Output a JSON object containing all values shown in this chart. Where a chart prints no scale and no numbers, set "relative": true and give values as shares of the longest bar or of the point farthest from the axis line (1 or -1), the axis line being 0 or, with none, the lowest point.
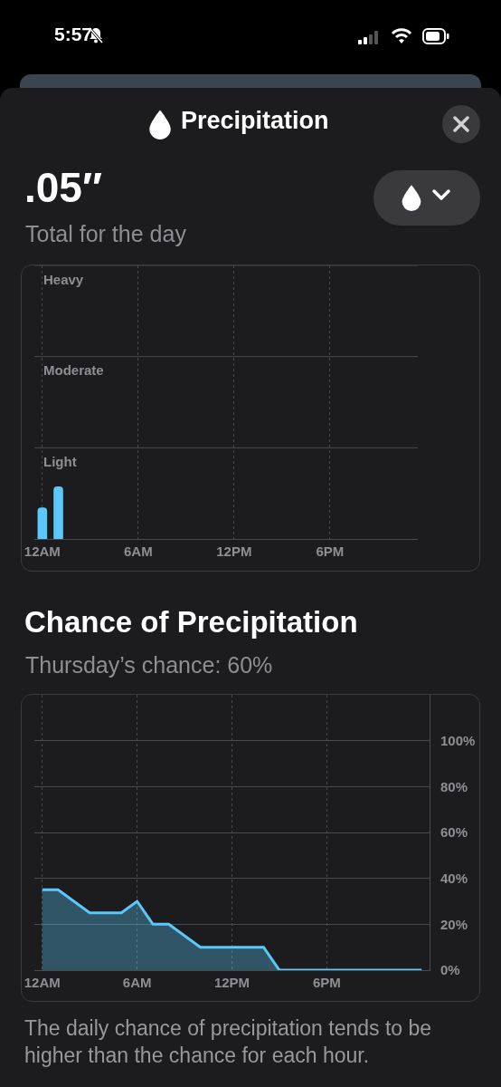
{
  "chart_data": [
    {
      "type": "bar",
      "title": ".05″",
      "subtitle": "Total for the day",
      "annotations": [
        "5:57",
        "Precipitation",
        "Heavy",
        "Moderate",
        "Light"
      ],
      "categories": [
        "12AM",
        null,
        null,
        null,
        null,
        null,
        "6AM",
        null,
        null,
        null,
        null,
        null,
        "12PM",
        null,
        null,
        null,
        null,
        null,
        "6PM",
        null,
        null,
        null,
        null,
        null
      ],
      "values": [
        0.6,
        1,
        null,
        null,
        null,
        null,
        null,
        null,
        null,
        null,
        null,
        null,
        null,
        null,
        null,
        null,
        null,
        null,
        null,
        null,
        null,
        null,
        null,
        null
      ],
      "color": "#5ac8fa",
      "relative": true,
      "grid": "x"
    },
    {
      "type": "area",
      "title": "Chance of Precipitation",
      "subtitle": "Thursday’s chance: 60%",
      "annotations": [
        "The daily chance of precipitation tends to be higher than the chance for each hour."
      ],
      "categories": [
        "12AM",
        null,
        null,
        null,
        null,
        null,
        "6AM",
        null,
        null,
        null,
        null,
        null,
        "12PM",
        null,
        null,
        null,
        null,
        null,
        "6PM",
        null,
        null,
        null,
        null,
        null,
        null
      ],
      "values": [
        35,
        35,
        30,
        25,
        25,
        25,
        30,
        20,
        20,
        15,
        10,
        10,
        10,
        10,
        10,
        0,
        0,
        0,
        0,
        0,
        0,
        0,
        0,
        0,
        0
      ],
      "color": "#5ac8fa",
      "ylim": [
        0,
        120
      ],
      "yticks": [
        {
          "value": 0,
          "label": "0%"
        },
        {
          "value": 20,
          "label": "20%"
        },
        {
          "value": 40,
          "label": "40%"
        },
        {
          "value": 60,
          "label": "60%"
        },
        {
          "value": 80,
          "label": "80%"
        },
        {
          "value": 100,
          "label": "100%"
        }
      ],
      "grid": true
    }
  ]
}
